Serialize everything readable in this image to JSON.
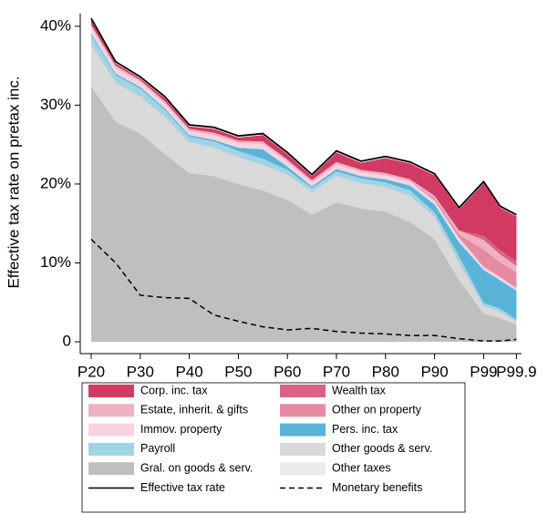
{
  "chart_data": {
    "type": "stacked-area",
    "ylabel": "Effective tax rate on pretax inc.",
    "categories": [
      "P20",
      null,
      "P30",
      null,
      "P40",
      null,
      "P50",
      null,
      "P60",
      null,
      "P70",
      null,
      "P80",
      null,
      "P90",
      null,
      "P99",
      null,
      "P99.9"
    ],
    "ylim": [
      -1.5,
      41.6
    ],
    "yticks": [
      {
        "value": 0,
        "label": "0"
      },
      {
        "value": 10,
        "label": "10%"
      },
      {
        "value": 20,
        "label": "20%"
      },
      {
        "value": 30,
        "label": "30%"
      },
      {
        "value": 40,
        "label": "40%"
      }
    ],
    "series": [
      {
        "name": "Gral. on goods & serv.",
        "color": "#bfbfbf",
        "values": [
          32.4,
          27.9,
          26.4,
          23.8,
          21.4,
          21.0,
          20.0,
          19.2,
          18.0,
          16.1,
          17.7,
          16.9,
          16.5,
          15.2,
          13.0,
          7.8,
          3.6,
          3.0,
          2.2
        ]
      },
      {
        "name": "Other goods & serv.",
        "color": "#d9d9d9",
        "values": [
          5.3,
          4.9,
          4.7,
          4.7,
          3.9,
          3.6,
          3.4,
          3.2,
          3.2,
          2.9,
          3.3,
          3.2,
          3.1,
          3.3,
          2.8,
          2.2,
          0.9,
          0.8,
          0.3
        ]
      },
      {
        "name": "Payroll",
        "color": "#9fd4e6",
        "values": [
          1.2,
          1.0,
          1.0,
          0.9,
          0.7,
          0.8,
          0.8,
          0.8,
          0.6,
          0.5,
          0.6,
          0.6,
          0.6,
          0.7,
          0.6,
          0.8,
          0.4,
          0.4,
          0.3
        ]
      },
      {
        "name": "Pers. inc. tax",
        "color": "#58b3d7",
        "values": [
          0.2,
          0.2,
          0.2,
          0.2,
          0.2,
          0.2,
          0.4,
          1.2,
          0.4,
          0.2,
          0.3,
          0.3,
          0.4,
          0.6,
          1.0,
          1.8,
          4.2,
          3.6,
          3.7
        ]
      },
      {
        "name": "Immov. property",
        "color": "#f7d3dd",
        "values": [
          0.8,
          0.7,
          0.6,
          0.6,
          0.5,
          0.6,
          0.6,
          0.7,
          0.6,
          0.5,
          0.6,
          0.5,
          0.5,
          0.5,
          0.5,
          0.6,
          0.4,
          0.4,
          0.3
        ]
      },
      {
        "name": "Other on property",
        "color": "#e68aa1",
        "values": [
          0,
          0,
          0,
          0,
          0,
          0,
          0,
          0,
          0,
          0,
          0,
          0,
          0,
          0,
          0.3,
          0.4,
          2.2,
          1.9,
          2.0
        ]
      },
      {
        "name": "Estate, inherit. & gifts",
        "color": "#efb1c1",
        "values": [
          0.3,
          0.3,
          0.3,
          0.3,
          0.3,
          0.3,
          0.3,
          0.3,
          0.3,
          0.3,
          0.3,
          0.3,
          0.3,
          0.3,
          0.3,
          0.5,
          1.2,
          1.0,
          0.8
        ]
      },
      {
        "name": "Wealth tax",
        "color": "#da6383",
        "values": [
          0,
          0,
          0,
          0,
          0,
          0,
          0,
          0,
          0,
          0,
          0,
          0,
          0,
          0,
          0,
          0,
          0.5,
          0.5,
          0.6
        ]
      },
      {
        "name": "Corp. inc. tax",
        "color": "#d13b63",
        "values": [
          0.6,
          0.3,
          0.2,
          0.4,
          0.3,
          0.5,
          0.4,
          0.8,
          0.7,
          0.5,
          1.2,
          0.9,
          1.9,
          2.0,
          2.6,
          2.7,
          6.7,
          5.4,
          5.7
        ]
      },
      {
        "name": "Other taxes",
        "color": "#ebebeb",
        "values": [
          0.2,
          0.2,
          0.2,
          0.2,
          0.2,
          0.2,
          0.2,
          0.2,
          0.2,
          0.2,
          0.2,
          0.2,
          0.2,
          0.2,
          0.2,
          0.2,
          0.2,
          0.2,
          0.2
        ]
      }
    ],
    "lines": [
      {
        "name": "Effective tax rate",
        "color": "#000000",
        "dash": false,
        "values": [
          41.0,
          35.5,
          33.6,
          31.1,
          27.5,
          27.2,
          26.1,
          26.4,
          24.0,
          21.2,
          24.2,
          22.9,
          23.5,
          22.8,
          21.3,
          17.0,
          20.3,
          17.2,
          16.1
        ]
      },
      {
        "name": "Monetary benefits",
        "color": "#000000",
        "dash": true,
        "values": [
          13.0,
          10.0,
          5.9,
          5.6,
          5.5,
          3.4,
          2.6,
          1.9,
          1.5,
          1.7,
          1.3,
          1.1,
          1.0,
          0.8,
          0.8,
          0.4,
          0.1,
          0.1,
          0.3
        ]
      }
    ],
    "legend_order": [
      "Corp. inc. tax",
      "Wealth tax",
      "Estate, inherit. & gifts",
      "Other on property",
      "Immov. property",
      "Pers. inc. tax",
      "Payroll",
      "Other goods & serv.",
      "Gral. on goods & serv.",
      "Other taxes",
      "Effective tax rate",
      "Monetary benefits"
    ]
  }
}
